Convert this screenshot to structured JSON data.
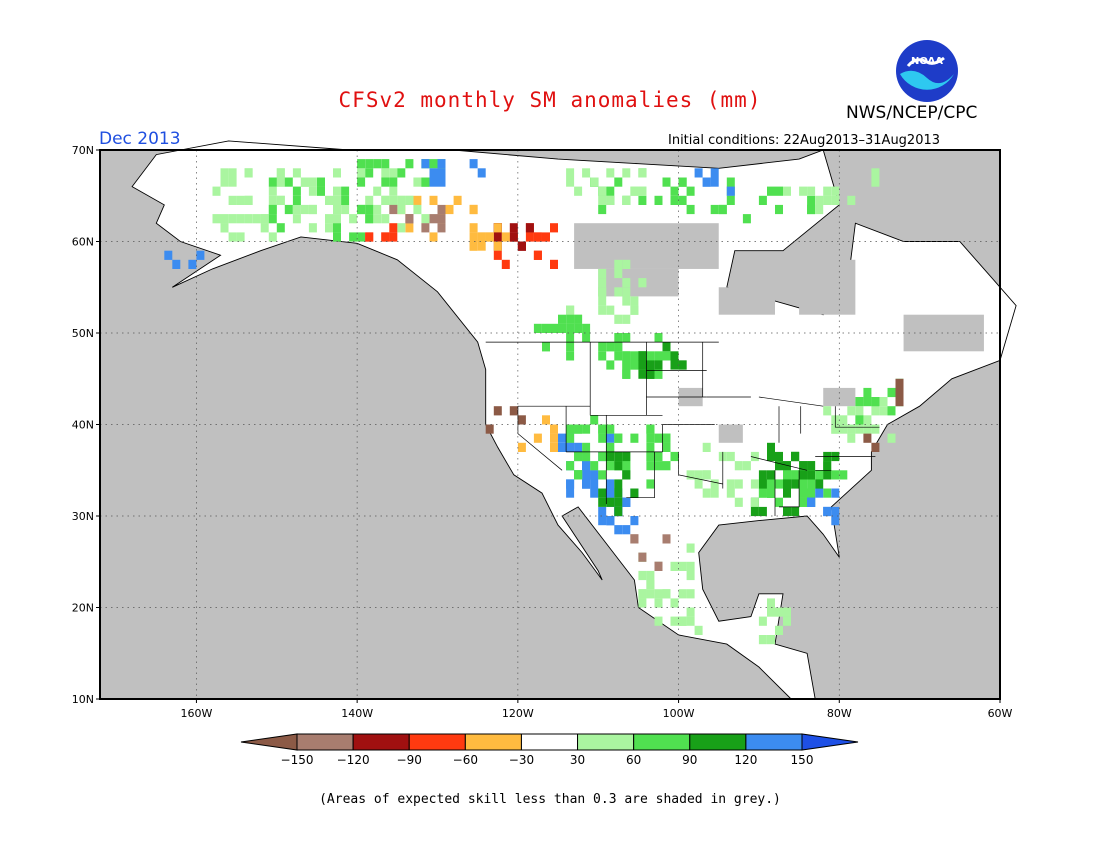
{
  "header": {
    "title": "CFSv2 monthly SM anomalies (mm)",
    "agency": "NWS/NCEP/CPC",
    "logo_text": "NOAA",
    "period": "Dec 2013",
    "initial_conditions": "Initial conditions: 22Aug2013–31Aug2013"
  },
  "map": {
    "projection": "equirectangular",
    "lon_range": [
      -172,
      -60
    ],
    "lat_range": [
      10,
      70
    ],
    "grid": true,
    "land_color": "#ffffff",
    "low_skill_color": "#c0c0c0",
    "lat_labels": [
      "10N",
      "20N",
      "30N",
      "40N",
      "50N",
      "60N",
      "70N"
    ],
    "lon_labels": [
      "160W",
      "140W",
      "120W",
      "100W",
      "80W",
      "60W"
    ]
  },
  "colorbar": {
    "labels": [
      "−150",
      "−120",
      "−90",
      "−60",
      "−30",
      "30",
      "60",
      "90",
      "120",
      "150"
    ],
    "colors": [
      "#8c5a46",
      "#a87d6f",
      "#a01010",
      "#ff3a10",
      "#ffbb40",
      "#ffffff",
      "#aaf5a0",
      "#50e050",
      "#18a018",
      "#3c8cf0",
      "#1e50e6"
    ]
  },
  "footnote": "(Areas of expected skill less than 0.3 are shaded in grey.)"
}
